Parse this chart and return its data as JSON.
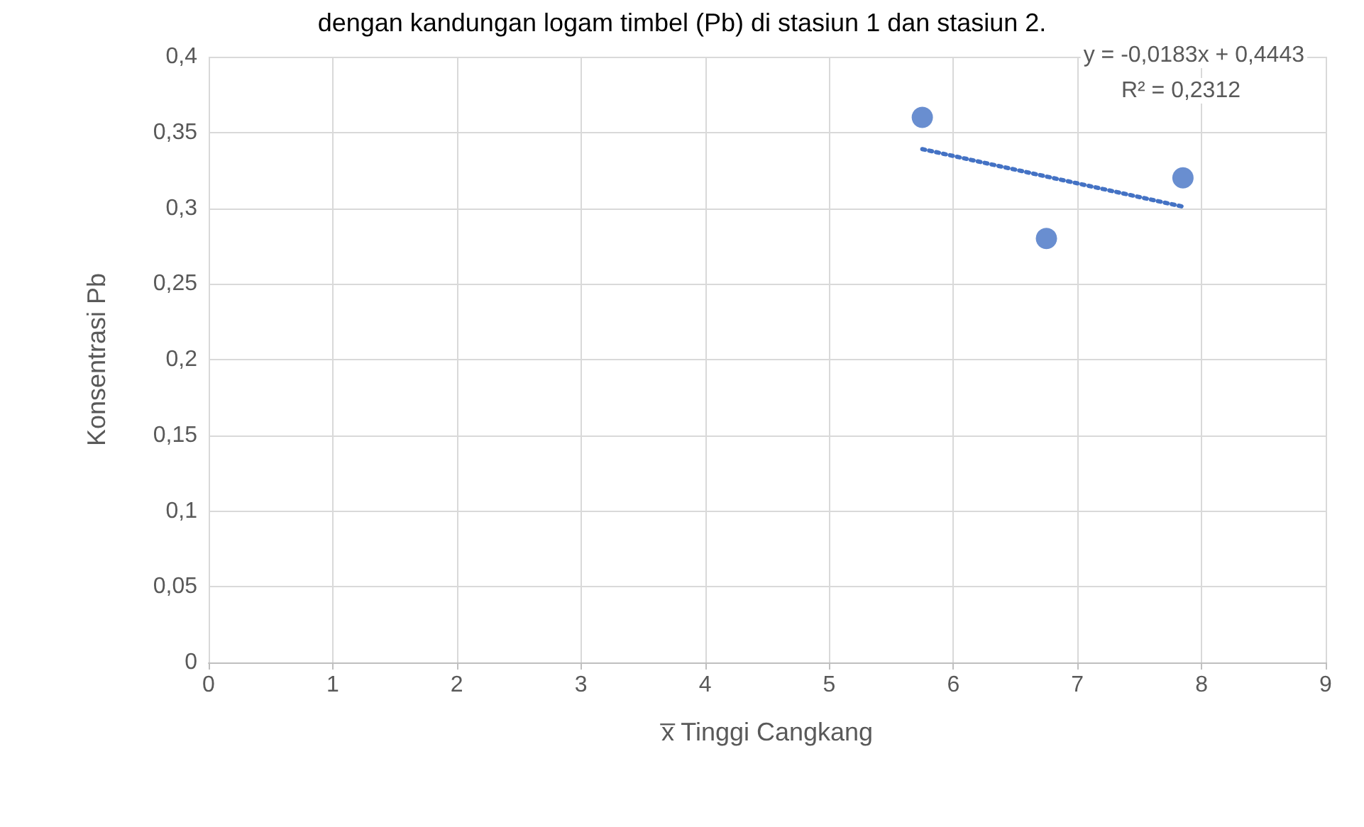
{
  "chart_data": {
    "type": "scatter",
    "title": "dengan kandungan logam timbel (Pb) di stasiun 1 dan stasiun 2.",
    "xlabel": "x̅ Tinggi Cangkang",
    "ylabel": "Konsentrasi Pb",
    "annotations": [
      "y = -0,0183x + 0,4443",
      "R² = 0,2312"
    ],
    "series": [
      {
        "type": "scatter",
        "color": "#4472c4",
        "x": [
          5.75,
          6.75,
          7.85
        ],
        "values": [
          0.36,
          0.28,
          0.32
        ],
        "marker": "circle"
      },
      {
        "type": "line",
        "color": "#4472c4",
        "x": [
          5.75,
          7.85
        ],
        "values": [
          0.339,
          0.301
        ],
        "marker": "none",
        "line_style": "dotted"
      }
    ],
    "xlim": [
      0,
      9
    ],
    "xticks": [
      0,
      1,
      2,
      3,
      4,
      5,
      6,
      7,
      8,
      9
    ],
    "ylim": [
      0,
      0.4
    ],
    "yticks": [
      0,
      {
        "value": 0.05,
        "label": "0,05"
      },
      {
        "value": 0.1,
        "label": "0,1"
      },
      {
        "value": 0.15,
        "label": "0,15"
      },
      {
        "value": 0.2,
        "label": "0,2"
      },
      {
        "value": 0.25,
        "label": "0,25"
      },
      {
        "value": 0.3,
        "label": "0,3"
      },
      {
        "value": 0.35,
        "label": "0,35"
      },
      {
        "value": 0.4,
        "label": "0,4"
      }
    ],
    "grid": true
  }
}
